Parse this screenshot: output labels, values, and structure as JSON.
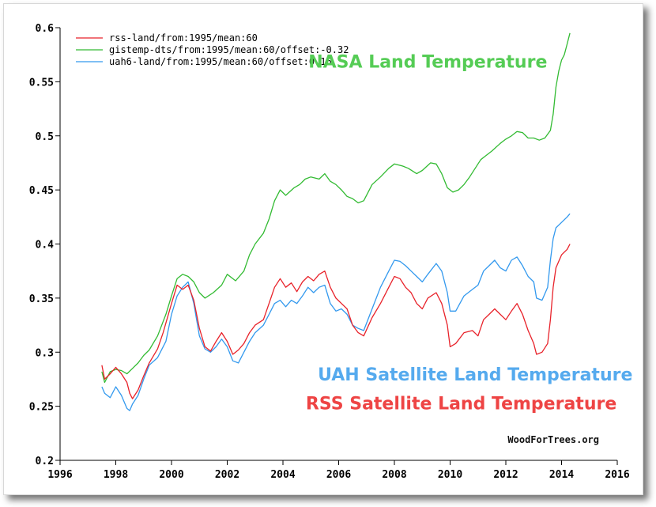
{
  "chart_data": {
    "type": "line",
    "xlim": [
      1996,
      2016
    ],
    "ylim": [
      0.2,
      0.6
    ],
    "x_ticks": [
      1996,
      1998,
      2000,
      2002,
      2004,
      2006,
      2008,
      2010,
      2012,
      2014,
      2016
    ],
    "y_ticks": [
      0.2,
      0.25,
      0.3,
      0.35,
      0.4,
      0.45,
      0.5,
      0.55,
      0.6
    ],
    "x_tick_labels": [
      "1996",
      "1998",
      "2000",
      "2002",
      "2004",
      "2006",
      "2008",
      "2010",
      "2012",
      "2014",
      "2016"
    ],
    "y_tick_labels": [
      "0.2",
      "0.25",
      "0.3",
      "0.35",
      "0.4",
      "0.45",
      "0.5",
      "0.55",
      "0.6"
    ],
    "grid": false,
    "legend_position": "top-left",
    "series": [
      {
        "name": "rss-land/from:1995/mean:60",
        "color": "#e8222a",
        "points": [
          [
            1997.5,
            0.288
          ],
          [
            1997.6,
            0.275
          ],
          [
            1997.8,
            0.28
          ],
          [
            1998.0,
            0.286
          ],
          [
            1998.2,
            0.28
          ],
          [
            1998.4,
            0.272
          ],
          [
            1998.5,
            0.262
          ],
          [
            1998.6,
            0.257
          ],
          [
            1998.8,
            0.265
          ],
          [
            1999.0,
            0.278
          ],
          [
            1999.2,
            0.29
          ],
          [
            1999.5,
            0.303
          ],
          [
            1999.7,
            0.318
          ],
          [
            2000.0,
            0.345
          ],
          [
            2000.2,
            0.362
          ],
          [
            2000.4,
            0.358
          ],
          [
            2000.6,
            0.362
          ],
          [
            2000.8,
            0.348
          ],
          [
            2001.0,
            0.322
          ],
          [
            2001.2,
            0.305
          ],
          [
            2001.4,
            0.301
          ],
          [
            2001.6,
            0.31
          ],
          [
            2001.8,
            0.318
          ],
          [
            2002.0,
            0.31
          ],
          [
            2002.2,
            0.298
          ],
          [
            2002.4,
            0.302
          ],
          [
            2002.6,
            0.308
          ],
          [
            2002.8,
            0.318
          ],
          [
            2003.0,
            0.325
          ],
          [
            2003.3,
            0.33
          ],
          [
            2003.5,
            0.345
          ],
          [
            2003.7,
            0.36
          ],
          [
            2003.9,
            0.368
          ],
          [
            2004.1,
            0.36
          ],
          [
            2004.3,
            0.364
          ],
          [
            2004.5,
            0.356
          ],
          [
            2004.7,
            0.365
          ],
          [
            2004.9,
            0.37
          ],
          [
            2005.1,
            0.366
          ],
          [
            2005.3,
            0.372
          ],
          [
            2005.5,
            0.375
          ],
          [
            2005.7,
            0.36
          ],
          [
            2005.9,
            0.35
          ],
          [
            2006.1,
            0.345
          ],
          [
            2006.3,
            0.34
          ],
          [
            2006.5,
            0.325
          ],
          [
            2006.7,
            0.318
          ],
          [
            2006.9,
            0.315
          ],
          [
            2007.2,
            0.332
          ],
          [
            2007.5,
            0.345
          ],
          [
            2007.8,
            0.36
          ],
          [
            2008.0,
            0.37
          ],
          [
            2008.2,
            0.368
          ],
          [
            2008.4,
            0.36
          ],
          [
            2008.6,
            0.355
          ],
          [
            2008.8,
            0.345
          ],
          [
            2009.0,
            0.34
          ],
          [
            2009.2,
            0.35
          ],
          [
            2009.5,
            0.355
          ],
          [
            2009.7,
            0.345
          ],
          [
            2009.9,
            0.325
          ],
          [
            2010.0,
            0.305
          ],
          [
            2010.2,
            0.308
          ],
          [
            2010.5,
            0.318
          ],
          [
            2010.8,
            0.32
          ],
          [
            2011.0,
            0.315
          ],
          [
            2011.2,
            0.33
          ],
          [
            2011.4,
            0.335
          ],
          [
            2011.6,
            0.34
          ],
          [
            2011.8,
            0.335
          ],
          [
            2012.0,
            0.33
          ],
          [
            2012.2,
            0.338
          ],
          [
            2012.4,
            0.345
          ],
          [
            2012.6,
            0.335
          ],
          [
            2012.8,
            0.32
          ],
          [
            2013.0,
            0.308
          ],
          [
            2013.1,
            0.298
          ],
          [
            2013.3,
            0.3
          ],
          [
            2013.5,
            0.308
          ],
          [
            2013.6,
            0.33
          ],
          [
            2013.7,
            0.36
          ],
          [
            2013.8,
            0.378
          ],
          [
            2014.0,
            0.39
          ],
          [
            2014.2,
            0.395
          ],
          [
            2014.3,
            0.4
          ]
        ]
      },
      {
        "name": "gistemp-dts/from:1995/mean:60/offset:-0.32",
        "color": "#33bb33",
        "points": [
          [
            1997.5,
            0.282
          ],
          [
            1997.6,
            0.272
          ],
          [
            1997.8,
            0.282
          ],
          [
            1998.0,
            0.284
          ],
          [
            1998.2,
            0.283
          ],
          [
            1998.4,
            0.28
          ],
          [
            1998.6,
            0.285
          ],
          [
            1998.8,
            0.29
          ],
          [
            1999.0,
            0.297
          ],
          [
            1999.2,
            0.302
          ],
          [
            1999.5,
            0.315
          ],
          [
            1999.8,
            0.335
          ],
          [
            2000.0,
            0.352
          ],
          [
            2000.2,
            0.368
          ],
          [
            2000.4,
            0.372
          ],
          [
            2000.6,
            0.37
          ],
          [
            2000.8,
            0.365
          ],
          [
            2001.0,
            0.355
          ],
          [
            2001.2,
            0.35
          ],
          [
            2001.5,
            0.355
          ],
          [
            2001.8,
            0.362
          ],
          [
            2002.0,
            0.372
          ],
          [
            2002.3,
            0.366
          ],
          [
            2002.6,
            0.375
          ],
          [
            2002.8,
            0.39
          ],
          [
            2003.0,
            0.4
          ],
          [
            2003.3,
            0.41
          ],
          [
            2003.5,
            0.423
          ],
          [
            2003.7,
            0.44
          ],
          [
            2003.9,
            0.45
          ],
          [
            2004.1,
            0.445
          ],
          [
            2004.4,
            0.452
          ],
          [
            2004.6,
            0.455
          ],
          [
            2004.8,
            0.46
          ],
          [
            2005.0,
            0.462
          ],
          [
            2005.3,
            0.46
          ],
          [
            2005.5,
            0.465
          ],
          [
            2005.7,
            0.458
          ],
          [
            2005.9,
            0.455
          ],
          [
            2006.1,
            0.45
          ],
          [
            2006.3,
            0.444
          ],
          [
            2006.5,
            0.442
          ],
          [
            2006.7,
            0.438
          ],
          [
            2006.9,
            0.44
          ],
          [
            2007.2,
            0.455
          ],
          [
            2007.5,
            0.462
          ],
          [
            2007.8,
            0.47
          ],
          [
            2008.0,
            0.474
          ],
          [
            2008.3,
            0.472
          ],
          [
            2008.5,
            0.47
          ],
          [
            2008.8,
            0.465
          ],
          [
            2009.0,
            0.468
          ],
          [
            2009.3,
            0.475
          ],
          [
            2009.5,
            0.474
          ],
          [
            2009.7,
            0.465
          ],
          [
            2009.9,
            0.452
          ],
          [
            2010.1,
            0.448
          ],
          [
            2010.3,
            0.45
          ],
          [
            2010.5,
            0.455
          ],
          [
            2010.7,
            0.462
          ],
          [
            2010.9,
            0.47
          ],
          [
            2011.1,
            0.478
          ],
          [
            2011.3,
            0.482
          ],
          [
            2011.5,
            0.486
          ],
          [
            2011.8,
            0.493
          ],
          [
            2012.0,
            0.497
          ],
          [
            2012.2,
            0.5
          ],
          [
            2012.4,
            0.504
          ],
          [
            2012.6,
            0.503
          ],
          [
            2012.8,
            0.498
          ],
          [
            2013.0,
            0.498
          ],
          [
            2013.2,
            0.496
          ],
          [
            2013.4,
            0.498
          ],
          [
            2013.6,
            0.505
          ],
          [
            2013.7,
            0.52
          ],
          [
            2013.8,
            0.545
          ],
          [
            2013.9,
            0.56
          ],
          [
            2014.0,
            0.57
          ],
          [
            2014.1,
            0.575
          ],
          [
            2014.2,
            0.585
          ],
          [
            2014.3,
            0.595
          ]
        ]
      },
      {
        "name": "uah6-land/from:1995/mean:60/offset:0.16",
        "color": "#3399ee",
        "points": [
          [
            1997.5,
            0.268
          ],
          [
            1997.6,
            0.262
          ],
          [
            1997.8,
            0.258
          ],
          [
            1998.0,
            0.268
          ],
          [
            1998.2,
            0.26
          ],
          [
            1998.4,
            0.248
          ],
          [
            1998.5,
            0.246
          ],
          [
            1998.6,
            0.252
          ],
          [
            1998.8,
            0.26
          ],
          [
            1999.0,
            0.275
          ],
          [
            1999.2,
            0.288
          ],
          [
            1999.5,
            0.295
          ],
          [
            1999.8,
            0.31
          ],
          [
            2000.0,
            0.335
          ],
          [
            2000.2,
            0.352
          ],
          [
            2000.4,
            0.36
          ],
          [
            2000.6,
            0.365
          ],
          [
            2000.8,
            0.345
          ],
          [
            2001.0,
            0.315
          ],
          [
            2001.2,
            0.303
          ],
          [
            2001.4,
            0.3
          ],
          [
            2001.6,
            0.305
          ],
          [
            2001.8,
            0.312
          ],
          [
            2002.0,
            0.305
          ],
          [
            2002.2,
            0.292
          ],
          [
            2002.4,
            0.29
          ],
          [
            2002.6,
            0.3
          ],
          [
            2002.8,
            0.31
          ],
          [
            2003.0,
            0.318
          ],
          [
            2003.3,
            0.325
          ],
          [
            2003.5,
            0.335
          ],
          [
            2003.7,
            0.345
          ],
          [
            2003.9,
            0.348
          ],
          [
            2004.1,
            0.342
          ],
          [
            2004.3,
            0.348
          ],
          [
            2004.5,
            0.345
          ],
          [
            2004.7,
            0.352
          ],
          [
            2004.9,
            0.36
          ],
          [
            2005.1,
            0.355
          ],
          [
            2005.3,
            0.36
          ],
          [
            2005.5,
            0.362
          ],
          [
            2005.7,
            0.345
          ],
          [
            2005.9,
            0.338
          ],
          [
            2006.1,
            0.34
          ],
          [
            2006.3,
            0.335
          ],
          [
            2006.5,
            0.325
          ],
          [
            2006.7,
            0.322
          ],
          [
            2006.9,
            0.32
          ],
          [
            2007.2,
            0.34
          ],
          [
            2007.5,
            0.36
          ],
          [
            2007.8,
            0.375
          ],
          [
            2008.0,
            0.385
          ],
          [
            2008.2,
            0.384
          ],
          [
            2008.4,
            0.38
          ],
          [
            2008.6,
            0.375
          ],
          [
            2008.8,
            0.37
          ],
          [
            2009.0,
            0.365
          ],
          [
            2009.2,
            0.372
          ],
          [
            2009.5,
            0.382
          ],
          [
            2009.7,
            0.375
          ],
          [
            2009.9,
            0.355
          ],
          [
            2010.0,
            0.338
          ],
          [
            2010.2,
            0.338
          ],
          [
            2010.5,
            0.352
          ],
          [
            2010.8,
            0.358
          ],
          [
            2011.0,
            0.362
          ],
          [
            2011.2,
            0.375
          ],
          [
            2011.4,
            0.38
          ],
          [
            2011.6,
            0.385
          ],
          [
            2011.8,
            0.378
          ],
          [
            2012.0,
            0.375
          ],
          [
            2012.2,
            0.385
          ],
          [
            2012.4,
            0.388
          ],
          [
            2012.6,
            0.38
          ],
          [
            2012.8,
            0.37
          ],
          [
            2013.0,
            0.365
          ],
          [
            2013.1,
            0.35
          ],
          [
            2013.3,
            0.348
          ],
          [
            2013.5,
            0.36
          ],
          [
            2013.6,
            0.385
          ],
          [
            2013.7,
            0.405
          ],
          [
            2013.8,
            0.415
          ],
          [
            2014.0,
            0.42
          ],
          [
            2014.2,
            0.425
          ],
          [
            2014.3,
            0.428
          ]
        ]
      }
    ],
    "annotations": [
      {
        "text": "NASA Land Temperature",
        "color": "#55cc55",
        "x": 2009.2,
        "y": 0.563
      },
      {
        "text": "UAH Satellite Land Temperature",
        "color": "#55aaee",
        "x": 2010.9,
        "y": 0.274
      },
      {
        "text": "RSS Satellite Land Temperature",
        "color": "#ee4444",
        "x": 2010.4,
        "y": 0.247
      }
    ],
    "watermark": "WoodForTrees.org"
  }
}
